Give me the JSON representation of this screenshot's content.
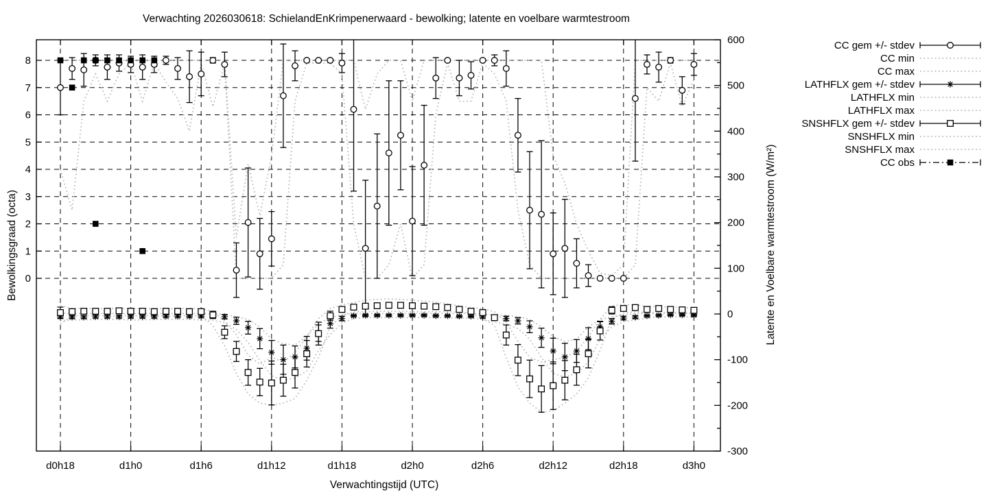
{
  "title": "Verwachting 2026030618: SchielandEnKrimpenerwaard - bewolking; latente en voelbare warmtestroom",
  "colors": {
    "foreground": "#000000",
    "background": "#ffffff",
    "minmax_dotted": "#b9b9b9"
  },
  "legend": {
    "position": "outside-right-top",
    "entries": [
      {
        "label": "CC gem +/- stdev",
        "style": "errorbar",
        "marker": "circle"
      },
      {
        "label": "CC min",
        "style": "dots",
        "marker": null
      },
      {
        "label": "CC max",
        "style": "dots",
        "marker": null
      },
      {
        "label": "LATHFLX gem +/- stdev",
        "style": "errorbar",
        "marker": "asterisk"
      },
      {
        "label": "LATHFLX min",
        "style": "dots",
        "marker": null
      },
      {
        "label": "LATHFLX max",
        "style": "dots",
        "marker": null
      },
      {
        "label": "SNSHFLX gem +/- stdev",
        "style": "errorbar",
        "marker": "square"
      },
      {
        "label": "SNSHFLX min",
        "style": "dots",
        "marker": null
      },
      {
        "label": "SNSHFLX max",
        "style": "dots",
        "marker": null
      },
      {
        "label": "CC obs",
        "style": "dashdot",
        "marker": "filled-square"
      }
    ]
  },
  "chart_data": {
    "type": "line",
    "title": "Verwachting 2026030618: SchielandEnKrimpenerwaard - bewolking; latente en voelbare warmtestroom",
    "xlabel": "Verwachtingstijd (UTC)",
    "ylabel_left": "Bewolkingsgraad (octa)",
    "ylabel_right": "Latente en Voelbare warmtestroom (W/m²)",
    "grid": true,
    "x_unit": "hours since d0h18",
    "x_tick_hours": [
      0,
      6,
      12,
      18,
      24,
      30,
      36,
      42,
      48,
      54
    ],
    "x_tick_labels": [
      "d0h18",
      "d1h0",
      "d1h6",
      "d1h12",
      "d1h18",
      "d2h0",
      "d2h6",
      "d2h12",
      "d2h18",
      "d3h0"
    ],
    "y_left_ticks": [
      0,
      1,
      2,
      3,
      4,
      5,
      6,
      7,
      8
    ],
    "y_left_range_shown": [
      0,
      8
    ],
    "y_right_ticks": [
      -300,
      -200,
      -100,
      0,
      100,
      200,
      300,
      400,
      500,
      600
    ],
    "y_right_minor_step": 50,
    "y_right_range": [
      -300,
      600
    ],
    "hours": [
      0,
      1,
      2,
      3,
      4,
      5,
      6,
      7,
      8,
      9,
      10,
      11,
      12,
      13,
      14,
      15,
      16,
      17,
      18,
      19,
      20,
      21,
      22,
      23,
      24,
      25,
      26,
      27,
      28,
      29,
      30,
      31,
      32,
      33,
      34,
      35,
      36,
      37,
      38,
      39,
      40,
      41,
      42,
      43,
      44,
      45,
      46,
      47,
      48,
      49,
      50,
      51,
      52,
      53,
      54
    ],
    "series": [
      {
        "name": "CC gem",
        "axis": "octa",
        "marker": "circle",
        "mean": [
          7.0,
          7.7,
          7.65,
          8.0,
          7.75,
          7.9,
          7.85,
          7.75,
          7.85,
          8.0,
          7.7,
          7.4,
          7.5,
          8.0,
          7.85,
          0.3,
          2.05,
          0.9,
          1.45,
          6.7,
          7.8,
          8.0,
          8.0,
          8.0,
          7.9,
          6.2,
          1.1,
          2.65,
          4.6,
          5.25,
          2.1,
          4.15,
          7.35,
          8.0,
          7.35,
          7.45,
          8.0,
          8.0,
          7.7,
          5.25,
          2.5,
          2.35,
          0.9,
          1.1,
          0.55,
          0.1,
          0.0,
          0.0,
          0.0,
          6.6,
          7.85,
          7.75,
          8.0,
          6.9,
          7.85
        ],
        "stdev": [
          1.0,
          0.4,
          0.6,
          0.2,
          0.45,
          0.3,
          0.3,
          0.45,
          0.3,
          0.15,
          0.4,
          0.95,
          0.8,
          0.1,
          0.45,
          1.0,
          2.0,
          1.3,
          1.0,
          1.9,
          0.55,
          0.05,
          0.05,
          0.05,
          0.35,
          3.0,
          2.5,
          2.65,
          2.65,
          2.0,
          2.0,
          2.2,
          0.75,
          0.05,
          0.65,
          0.5,
          0.05,
          0.2,
          0.65,
          1.35,
          2.15,
          2.7,
          1.5,
          1.8,
          0.9,
          0.4,
          0.0,
          0.0,
          0.0,
          2.3,
          0.35,
          0.55,
          0.1,
          0.5,
          0.4
        ]
      },
      {
        "name": "CC min",
        "axis": "octa",
        "values": [
          4.0,
          2.5,
          6.5,
          7.5,
          6.5,
          7.5,
          7.9,
          6.5,
          7.9,
          7.2,
          6.6,
          5.4,
          7.9,
          6.3,
          7.9,
          0,
          0,
          0,
          0,
          0.5,
          6.5,
          7.9,
          7.9,
          7.9,
          7.5,
          2.0,
          0,
          0,
          0.5,
          2.0,
          0,
          0.5,
          6.0,
          7.9,
          6.5,
          6.5,
          7.9,
          7.5,
          6.5,
          2.5,
          0.5,
          0,
          0,
          0,
          0,
          0,
          0,
          0,
          0,
          0.5,
          7.0,
          6.5,
          7.9,
          6.3,
          7.3
        ]
      },
      {
        "name": "CC max",
        "axis": "octa",
        "values": [
          8,
          8,
          8,
          8,
          8,
          8,
          8,
          8,
          8,
          8,
          8,
          8,
          8,
          8,
          8,
          1.5,
          4.2,
          2.3,
          4.5,
          8,
          8,
          8,
          8,
          8,
          8,
          8,
          6.2,
          7.5,
          8,
          8,
          6.5,
          8,
          8,
          8,
          8,
          8,
          8,
          8,
          8,
          8,
          8,
          8,
          4.5,
          3.5,
          2,
          1,
          0.2,
          0.1,
          0.5,
          8,
          8,
          8,
          8,
          8,
          8
        ]
      },
      {
        "name": "LATHFLX gem",
        "axis": "wm2",
        "marker": "asterisk",
        "mean": [
          -6,
          -7,
          -7,
          -6,
          -6,
          -6,
          -6,
          -6,
          -6,
          -5,
          -5,
          -5,
          -5,
          -4,
          -6,
          -15,
          -30,
          -54,
          -84,
          -100,
          -94,
          -75,
          -42,
          -21,
          -10,
          -4,
          -3,
          -3,
          -3,
          -3,
          -3,
          -3,
          -4,
          -4,
          -5,
          -5,
          -6,
          -9,
          -10,
          -15,
          -28,
          -52,
          -81,
          -94,
          -81,
          -54,
          -28,
          -16,
          -9,
          -7,
          -4,
          -3,
          -2,
          -2,
          -3
        ],
        "stdev": [
          4,
          3,
          3,
          3,
          3,
          3,
          3,
          3,
          3,
          3,
          3,
          3,
          3,
          4,
          5,
          8,
          14,
          22,
          26,
          32,
          24,
          26,
          18,
          10,
          5,
          2,
          2,
          2,
          2,
          2,
          2,
          2,
          2,
          2,
          2,
          2,
          3,
          4,
          5,
          7,
          13,
          21,
          28,
          30,
          25,
          24,
          12,
          6,
          4,
          3,
          2,
          2,
          2,
          2,
          2
        ]
      },
      {
        "name": "LATHFLX min",
        "axis": "wm2",
        "values": [
          -15,
          -13,
          -13,
          -12,
          -12,
          -12,
          -13,
          -13,
          -12,
          -12,
          -12,
          -12,
          -13,
          -14,
          -19,
          -34,
          -62,
          -102,
          -135,
          -145,
          -140,
          -125,
          -80,
          -45,
          -20,
          -10,
          -8,
          -8,
          -8,
          -8,
          -8,
          -8,
          -8,
          -8,
          -9,
          -9,
          -12,
          -18,
          -22,
          -32,
          -55,
          -95,
          -130,
          -138,
          -130,
          -105,
          -55,
          -28,
          -17,
          -13,
          -9,
          -7,
          -6,
          -6,
          -7
        ]
      },
      {
        "name": "LATHFLX max",
        "axis": "wm2",
        "values": [
          2,
          1,
          1,
          1,
          1,
          1,
          1,
          1,
          1,
          1,
          1,
          1,
          1,
          0,
          -1,
          -6,
          -12,
          -28,
          -55,
          -65,
          -68,
          -48,
          -22,
          -8,
          -2,
          1,
          1,
          1,
          1,
          1,
          1,
          1,
          1,
          1,
          1,
          1,
          0,
          -2,
          -3,
          -6,
          -12,
          -28,
          -50,
          -60,
          -55,
          -28,
          -12,
          -6,
          -2,
          1,
          1,
          1,
          1,
          1,
          1
        ]
      },
      {
        "name": "SNSHFLX gem",
        "axis": "wm2",
        "marker": "square",
        "mean": [
          3,
          5,
          6,
          6,
          6,
          7,
          6,
          6,
          5,
          6,
          6,
          5,
          5,
          -2,
          -40,
          -82,
          -128,
          -149,
          -151,
          -145,
          -128,
          -87,
          -43,
          -4,
          10,
          15,
          17,
          18,
          19,
          19,
          18,
          17,
          16,
          14,
          10,
          6,
          3,
          -8,
          -46,
          -101,
          -142,
          -164,
          -157,
          -145,
          -122,
          -87,
          -37,
          8,
          12,
          14,
          10,
          12,
          10,
          9,
          8
        ],
        "stdev": [
          12,
          4,
          4,
          4,
          4,
          4,
          4,
          4,
          4,
          4,
          4,
          4,
          4,
          8,
          14,
          22,
          28,
          30,
          48,
          35,
          34,
          29,
          25,
          10,
          6,
          5,
          5,
          5,
          5,
          5,
          5,
          5,
          5,
          5,
          5,
          5,
          6,
          6,
          22,
          34,
          41,
          51,
          52,
          43,
          34,
          31,
          20,
          8,
          5,
          4,
          4,
          4,
          4,
          4,
          4
        ]
      },
      {
        "name": "SNSHFLX min",
        "axis": "wm2",
        "values": [
          -22,
          -4,
          -4,
          -4,
          -4,
          -4,
          -4,
          -4,
          -4,
          -4,
          -4,
          -4,
          -4,
          -25,
          -70,
          -130,
          -175,
          -195,
          -200,
          -195,
          -185,
          -145,
          -95,
          -28,
          -3,
          5,
          5,
          6,
          6,
          6,
          5,
          5,
          5,
          5,
          4,
          3,
          -10,
          -25,
          -95,
          -160,
          -195,
          -215,
          -212,
          -195,
          -175,
          -140,
          -80,
          -10,
          2,
          5,
          3,
          4,
          3,
          2,
          2
        ]
      },
      {
        "name": "SNSHFLX max",
        "axis": "wm2",
        "values": [
          18,
          12,
          12,
          12,
          12,
          12,
          12,
          12,
          12,
          12,
          12,
          12,
          12,
          5,
          -15,
          -45,
          -90,
          -110,
          -95,
          -105,
          -85,
          -50,
          -10,
          12,
          20,
          25,
          30,
          32,
          33,
          32,
          30,
          28,
          26,
          22,
          18,
          14,
          12,
          5,
          -18,
          -60,
          -95,
          -105,
          -100,
          -95,
          -82,
          -50,
          -12,
          18,
          20,
          20,
          16,
          17,
          15,
          14,
          13
        ]
      },
      {
        "name": "CC obs",
        "axis": "octa",
        "marker": "filled-square",
        "points": [
          [
            0,
            8
          ],
          [
            1,
            7
          ],
          [
            2,
            8
          ],
          [
            3,
            8
          ],
          [
            3,
            2
          ],
          [
            4,
            8
          ],
          [
            5,
            8
          ],
          [
            6,
            8
          ],
          [
            7,
            8
          ],
          [
            7,
            1
          ],
          [
            8,
            8
          ]
        ]
      }
    ]
  }
}
